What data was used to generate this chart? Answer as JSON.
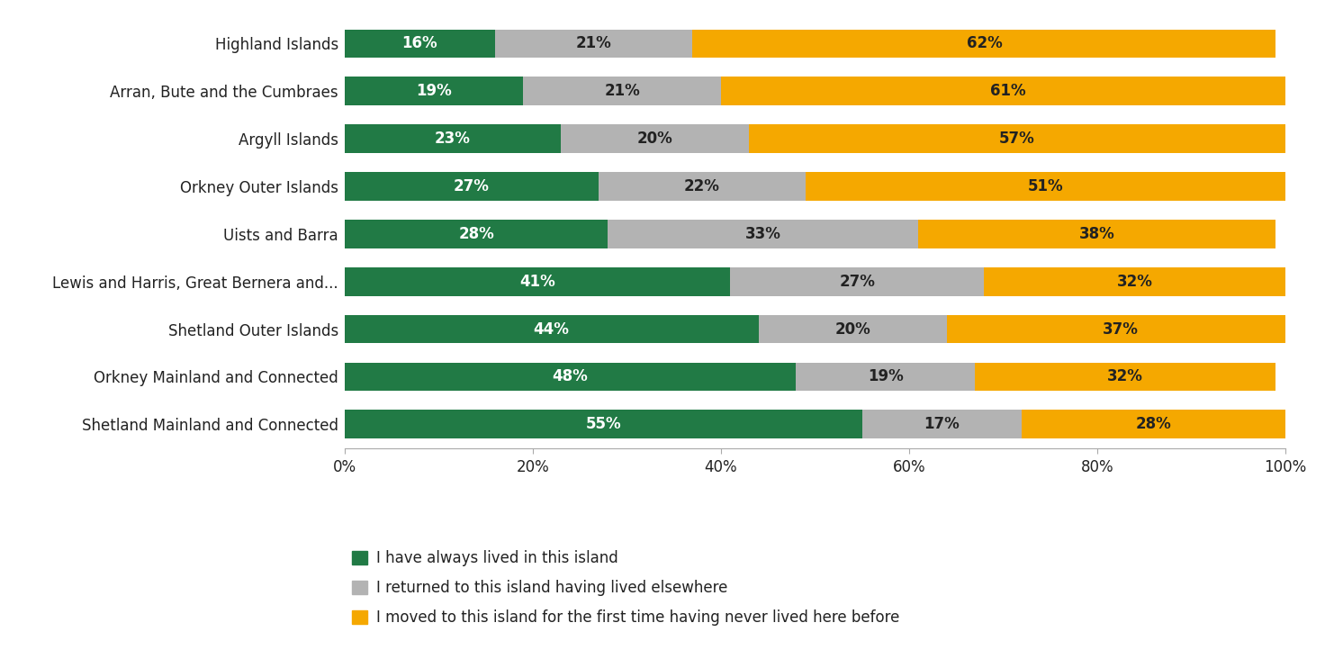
{
  "categories": [
    "Highland Islands",
    "Arran, Bute and the Cumbraes",
    "Argyll Islands",
    "Orkney Outer Islands",
    "Uists and Barra",
    "Lewis and Harris, Great Bernera and...",
    "Shetland Outer Islands",
    "Orkney Mainland and Connected",
    "Shetland Mainland and Connected"
  ],
  "always_lived": [
    16,
    19,
    23,
    27,
    28,
    41,
    44,
    48,
    55
  ],
  "returned": [
    21,
    21,
    20,
    22,
    33,
    27,
    20,
    19,
    17
  ],
  "moved": [
    62,
    61,
    57,
    51,
    38,
    32,
    37,
    32,
    28
  ],
  "color_always": "#217a45",
  "color_returned": "#b3b3b3",
  "color_moved": "#f5a800",
  "legend_always": "I have always lived in this island",
  "legend_returned": "I returned to this island having lived elsewhere",
  "legend_moved": "I moved to this island for the first time having never lived here before",
  "bar_height": 0.6,
  "background_color": "#ffffff",
  "label_fontsize": 12,
  "tick_fontsize": 12,
  "legend_fontsize": 12,
  "ytick_fontsize": 12
}
